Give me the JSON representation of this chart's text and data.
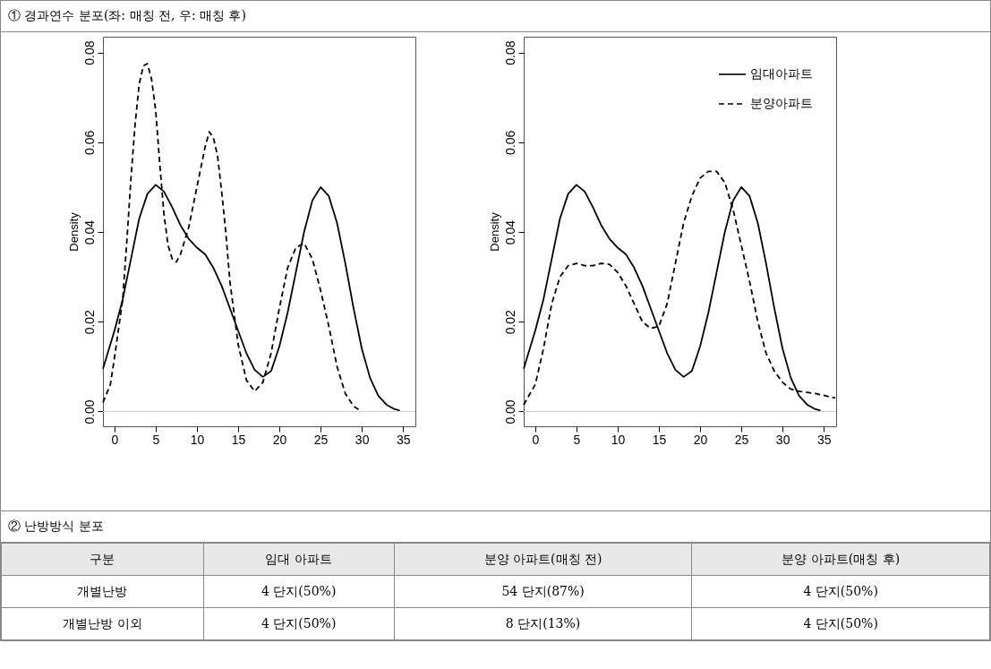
{
  "chart_data": [
    {
      "type": "line",
      "title": "① 경과연수 분포(좌: 매칭 전, 우: 매칭 후)",
      "ylabel": "Density",
      "xlim": [
        -1.4,
        36.5
      ],
      "ylim": [
        -0.0033,
        0.0835
      ],
      "xticks": [
        0,
        5,
        10,
        15,
        20,
        25,
        30,
        35
      ],
      "yticks": [
        {
          "value": 0,
          "label": "0.00"
        },
        {
          "value": 0.02,
          "label": "0.02"
        },
        {
          "value": 0.04,
          "label": "0.04"
        },
        {
          "value": 0.06,
          "label": "0.06"
        },
        {
          "value": 0.08,
          "label": "0.08"
        }
      ],
      "grid": false,
      "legend": false,
      "marker": "none",
      "ref_lines": [
        {
          "axis": "y",
          "value": 0,
          "color": "#cccccc"
        }
      ],
      "series": [
        {
          "color": "#000000",
          "line_style": "solid",
          "x": [
            -1.4,
            0,
            1,
            2,
            3,
            4,
            5,
            6,
            7,
            8,
            9,
            10,
            11,
            12,
            13,
            14,
            15,
            16,
            17,
            18,
            19,
            20,
            21,
            22,
            23,
            24,
            25,
            26,
            27,
            28,
            29,
            30,
            31,
            32,
            33,
            34,
            34.6
          ],
          "values": [
            0.0095,
            0.018,
            0.025,
            0.034,
            0.043,
            0.0485,
            0.0505,
            0.049,
            0.0455,
            0.0415,
            0.0385,
            0.0365,
            0.035,
            0.032,
            0.028,
            0.023,
            0.018,
            0.013,
            0.0093,
            0.0077,
            0.009,
            0.0145,
            0.022,
            0.031,
            0.04,
            0.047,
            0.05,
            0.048,
            0.042,
            0.033,
            0.023,
            0.014,
            0.0075,
            0.0035,
            0.0015,
            0.0005,
            0.0002
          ]
        },
        {
          "color": "#000000",
          "line_style": "dashed",
          "x": [
            -1.4,
            -0.5,
            0,
            1,
            1.5,
            2,
            2.5,
            3,
            3.5,
            4,
            4.5,
            5,
            5.5,
            6,
            6.5,
            7,
            7.5,
            8,
            9,
            10,
            11,
            11.5,
            12,
            12.5,
            13,
            13.5,
            14,
            15,
            16,
            17,
            18,
            19,
            20,
            21,
            22,
            23,
            24,
            25,
            26,
            27,
            28,
            29,
            29.8
          ],
          "values": [
            0.002,
            0.006,
            0.012,
            0.025,
            0.038,
            0.052,
            0.064,
            0.073,
            0.077,
            0.0775,
            0.074,
            0.067,
            0.055,
            0.044,
            0.037,
            0.034,
            0.0333,
            0.035,
            0.041,
            0.05,
            0.059,
            0.0623,
            0.061,
            0.057,
            0.049,
            0.04,
            0.029,
            0.015,
            0.007,
            0.0045,
            0.0065,
            0.013,
            0.023,
            0.032,
            0.0365,
            0.0375,
            0.034,
            0.027,
            0.019,
            0.01,
            0.004,
            0.0012,
            0.0002
          ]
        }
      ]
    },
    {
      "type": "line",
      "ylabel": "Density",
      "xlim": [
        -1.4,
        36.5
      ],
      "ylim": [
        -0.0033,
        0.0835
      ],
      "xticks": [
        0,
        5,
        10,
        15,
        20,
        25,
        30,
        35
      ],
      "yticks": [
        {
          "value": 0,
          "label": "0.00"
        },
        {
          "value": 0.02,
          "label": "0.02"
        },
        {
          "value": 0.04,
          "label": "0.04"
        },
        {
          "value": 0.06,
          "label": "0.06"
        },
        {
          "value": 0.08,
          "label": "0.08"
        }
      ],
      "grid": false,
      "legend": "top right",
      "marker": "none",
      "ref_lines": [
        {
          "axis": "y",
          "value": 0,
          "color": "#cccccc"
        }
      ],
      "series": [
        {
          "name": "임대아파트",
          "color": "#000000",
          "line_style": "solid",
          "x": [
            -1.4,
            0,
            1,
            2,
            3,
            4,
            5,
            6,
            7,
            8,
            9,
            10,
            11,
            12,
            13,
            14,
            15,
            16,
            17,
            18,
            19,
            20,
            21,
            22,
            23,
            24,
            25,
            26,
            27,
            28,
            29,
            30,
            31,
            32,
            33,
            34,
            34.6
          ],
          "values": [
            0.0095,
            0.018,
            0.025,
            0.034,
            0.043,
            0.0485,
            0.0505,
            0.049,
            0.0455,
            0.0415,
            0.0385,
            0.0365,
            0.035,
            0.032,
            0.028,
            0.023,
            0.018,
            0.013,
            0.0093,
            0.0077,
            0.009,
            0.0145,
            0.022,
            0.031,
            0.04,
            0.047,
            0.05,
            0.048,
            0.042,
            0.033,
            0.023,
            0.014,
            0.0075,
            0.0035,
            0.0015,
            0.0005,
            0.0002
          ]
        },
        {
          "name": "분양아파트",
          "color": "#000000",
          "line_style": "dashed",
          "x": [
            -1.4,
            0,
            1,
            2,
            3,
            4,
            5,
            6,
            7,
            8,
            9,
            10,
            11,
            12,
            13,
            14,
            15,
            16,
            17,
            18,
            19,
            20,
            21,
            22,
            23,
            24,
            25,
            26,
            27,
            28,
            29,
            30,
            31,
            32,
            34,
            36.4
          ],
          "values": [
            0.0015,
            0.006,
            0.014,
            0.024,
            0.03,
            0.0325,
            0.033,
            0.0325,
            0.0325,
            0.033,
            0.0328,
            0.031,
            0.028,
            0.024,
            0.02,
            0.0185,
            0.019,
            0.024,
            0.033,
            0.042,
            0.048,
            0.052,
            0.0535,
            0.0535,
            0.051,
            0.045,
            0.037,
            0.029,
            0.02,
            0.013,
            0.009,
            0.0065,
            0.005,
            0.0045,
            0.004,
            0.003
          ]
        }
      ]
    },
    {
      "type": "other",
      "title": "② 난방방식 분포",
      "annotations": [
        "구분",
        "임대 아파트",
        "분양 아파트(매칭 전)",
        "분양 아파트(매칭 후)",
        "개별난방",
        "4 단지(50%)",
        "54 단지(87%)",
        "4 단지(50%)",
        "개별난방 이외",
        "4 단지(50%)",
        "8 단지(13%)",
        "4 단지(50%)"
      ]
    }
  ]
}
